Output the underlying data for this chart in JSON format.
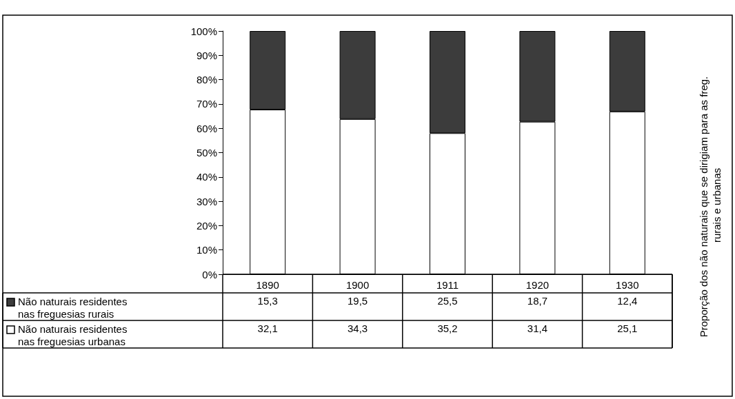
{
  "chart_data": {
    "type": "bar",
    "stacked": true,
    "categories": [
      "1890",
      "1900",
      "1911",
      "1920",
      "1930"
    ],
    "series": [
      {
        "name": "Não naturais residentes nas freguesias urbanas",
        "color": "#ffffff",
        "values": [
          67.7,
          63.8,
          58.0,
          62.7,
          66.9
        ]
      },
      {
        "name": "Não naturais residentes nas freguesias rurais",
        "color": "#3c3c3c",
        "values": [
          32.3,
          36.2,
          42.0,
          37.3,
          33.1
        ]
      }
    ],
    "annotations": [
      "15,3",
      "19,5",
      "25,5",
      "18,7",
      "12,4",
      "32,1",
      "34,3",
      "35,2",
      "31,4",
      "25,1"
    ],
    "ylim": [
      0,
      100
    ],
    "yticks": [
      {
        "value": 0,
        "label": "0%"
      },
      {
        "value": 10,
        "label": "10%"
      },
      {
        "value": 20,
        "label": "20%"
      },
      {
        "value": 30,
        "label": "30%"
      },
      {
        "value": 40,
        "label": "40%"
      },
      {
        "value": 50,
        "label": "50%"
      },
      {
        "value": 60,
        "label": "60%"
      },
      {
        "value": 70,
        "label": "70%"
      },
      {
        "value": 80,
        "label": "80%"
      },
      {
        "value": 90,
        "label": "90%"
      },
      {
        "value": 100,
        "label": "100%"
      }
    ],
    "ylabel": "Proporção dos não naturais que se dirigiam para as freg. rurais e urbanas",
    "grid": false,
    "legend": "bottom left"
  }
}
